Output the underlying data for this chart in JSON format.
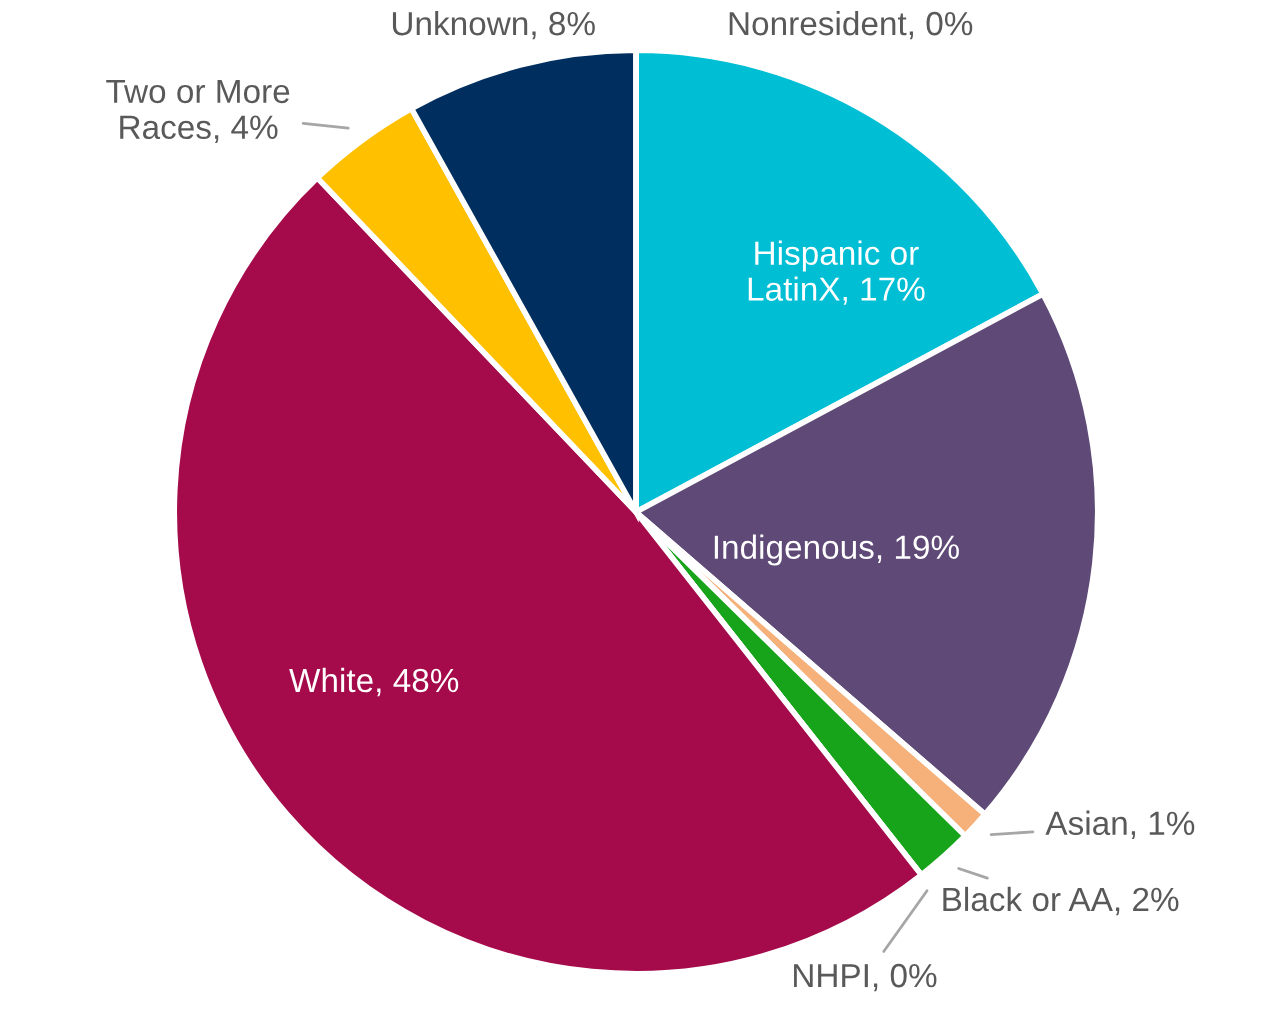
{
  "chart_data": {
    "type": "pie",
    "categories": [
      "Hispanic or\nLatinX, 17%",
      "Indigenous, 19%",
      "Asian, 1%",
      "Black or AA, 2%",
      "NHPI, 0%",
      "White, 48%",
      "Two or More\nRaces, 4%",
      "Unknown, 8%",
      "Nonresident, 0%"
    ],
    "values": [
      17,
      19,
      1,
      2,
      0,
      48,
      4,
      8,
      0
    ],
    "colors": [
      "#00bfd5",
      "#5e4977",
      "#f6b079",
      "#17a31a",
      "#c8c8c8",
      "#a50a4a",
      "#ffc000",
      "#002f5f",
      "#7f7f7f"
    ]
  }
}
